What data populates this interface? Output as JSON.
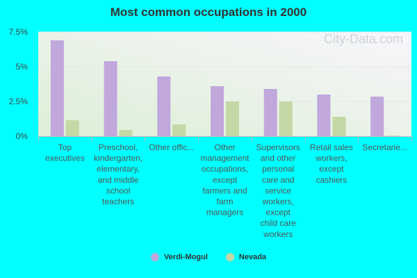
{
  "title": "Most common occupations in 2000",
  "watermark": "City-Data.com",
  "colors": {
    "background": "#00ffff",
    "series1": "#c0a8dc",
    "series2": "#c4d8a6"
  },
  "chart_data": {
    "type": "bar",
    "title": "Most common occupations in 2000",
    "categories": [
      [
        "Top",
        "executives"
      ],
      [
        "Preschool,",
        "kindergarten,",
        "elementary,",
        "and middle",
        "school",
        "teachers"
      ],
      [
        "Other offic..."
      ],
      [
        "Other",
        "management",
        "occupations,",
        "except",
        "farmers and",
        "farm",
        "managers"
      ],
      [
        "Supervisors",
        "and other",
        "personal",
        "care and",
        "service",
        "workers,",
        "except",
        "child care",
        "workers"
      ],
      [
        "Retail sales",
        "workers,",
        "except",
        "cashiers"
      ],
      [
        "Secretarie..."
      ]
    ],
    "series": [
      {
        "name": "Verdi-Mogul",
        "color": "#c0a8dc",
        "values": [
          6.9,
          5.4,
          4.3,
          3.6,
          3.4,
          3.0,
          2.85
        ]
      },
      {
        "name": "Nevada",
        "color": "#c4d8a6",
        "values": [
          1.15,
          0.45,
          0.85,
          2.5,
          2.5,
          1.4,
          0.05
        ]
      }
    ],
    "yticks": [
      "0%",
      "2.5%",
      "5%",
      "7.5%"
    ],
    "ytick_values": [
      0,
      2.5,
      5,
      7.5
    ],
    "ylim": [
      0,
      7.5
    ],
    "legend_position": "bottom",
    "grid": true
  }
}
